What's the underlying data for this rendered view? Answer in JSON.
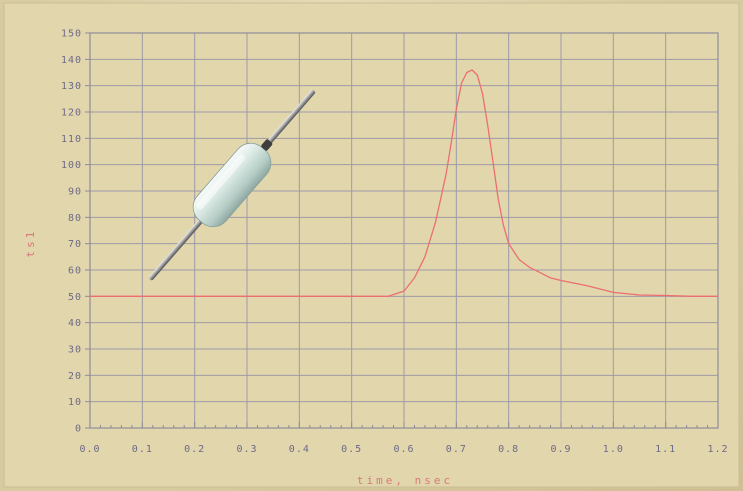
{
  "colors": {
    "background": "#d8caa1",
    "panel": "#e2d6ad",
    "grid": "#9d9aa6",
    "frame": "#8f8c98",
    "trace": "#ec6e72",
    "tick_text": "#6d6a86",
    "axis_title": "#d77a7a"
  },
  "illustration": {
    "icon": "axial-resistor-icon"
  },
  "chart_data": {
    "type": "line",
    "title": "",
    "xlabel": "time, nsec",
    "ylabel": "ts1",
    "xlim": [
      0.0,
      1.2
    ],
    "ylim": [
      0,
      150
    ],
    "grid": true,
    "x_ticks": [
      0.0,
      0.1,
      0.2,
      0.3,
      0.4,
      0.5,
      0.6,
      0.7,
      0.8,
      0.9,
      1.0,
      1.1,
      1.2
    ],
    "x_tick_labels": [
      "0.0",
      "0.1",
      "0.2",
      "0.3",
      "0.4",
      "0.5",
      "0.6",
      "0.7",
      "0.8",
      "0.9",
      "1.0",
      "1.1",
      "1.2"
    ],
    "y_ticks": [
      0,
      10,
      20,
      30,
      40,
      50,
      60,
      70,
      80,
      90,
      100,
      110,
      120,
      130,
      140,
      150
    ],
    "y_tick_labels": [
      "0",
      "10",
      "20",
      "30",
      "40",
      "50",
      "60",
      "70",
      "80",
      "90",
      "100",
      "110",
      "120",
      "130",
      "140",
      "150"
    ],
    "series": [
      {
        "x": [
          0.0,
          0.1,
          0.2,
          0.3,
          0.4,
          0.5,
          0.57,
          0.6,
          0.62,
          0.64,
          0.66,
          0.68,
          0.69,
          0.7,
          0.71,
          0.72,
          0.73,
          0.74,
          0.75,
          0.76,
          0.77,
          0.78,
          0.79,
          0.8,
          0.82,
          0.84,
          0.86,
          0.88,
          0.9,
          0.95,
          1.0,
          1.05,
          1.1,
          1.15,
          1.2
        ],
        "y": [
          50,
          50,
          50,
          50,
          50,
          50,
          50,
          52,
          57,
          65,
          78,
          96,
          108,
          121,
          131,
          135,
          136,
          134,
          127,
          115,
          101,
          87,
          77,
          70,
          64,
          61,
          59,
          57,
          56,
          54,
          51.5,
          50.5,
          50.3,
          50,
          50
        ]
      }
    ]
  }
}
